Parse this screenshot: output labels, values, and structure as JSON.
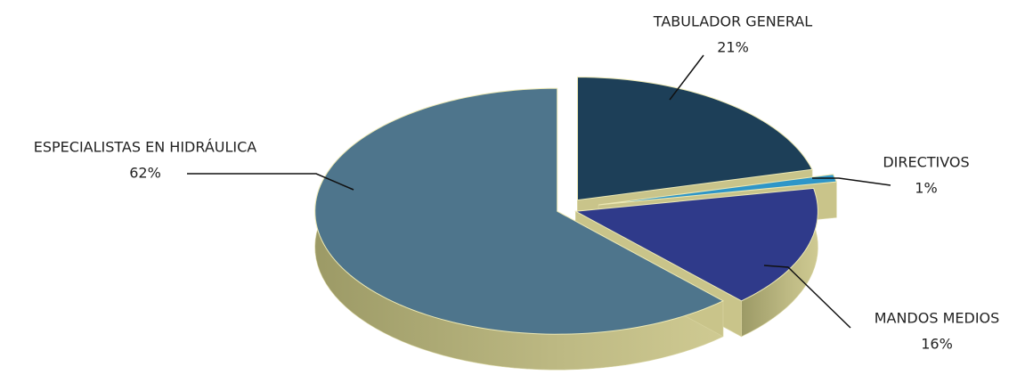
{
  "chart_data": {
    "type": "pie",
    "categories": [
      "TABULADOR GENERAL",
      "DIRECTIVOS",
      "MANDOS MEDIOS",
      "ESPECIALISTAS EN HIDRÁULICA"
    ],
    "values": [
      21,
      1,
      16,
      62
    ],
    "value_labels": [
      "21%",
      "1%",
      "16%",
      "62%"
    ],
    "colors": [
      "#1d3f58",
      "#2e96c8",
      "#2f3a8a",
      "#4e758c"
    ]
  }
}
